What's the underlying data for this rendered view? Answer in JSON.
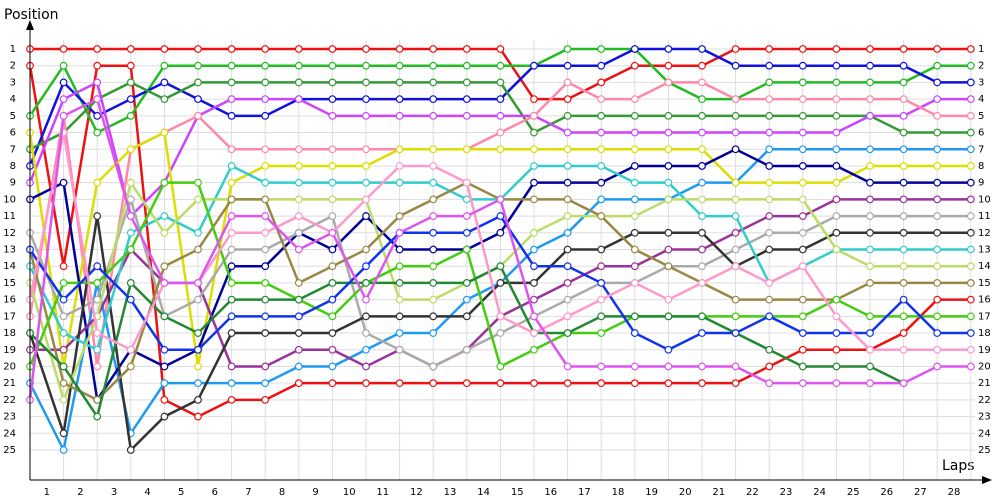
{
  "chart_data": {
    "type": "line",
    "y_label": "Position",
    "x_label": "Laps",
    "grid": true,
    "x": [
      0,
      1,
      2,
      3,
      4,
      5,
      6,
      7,
      8,
      9,
      10,
      11,
      12,
      13,
      14,
      15,
      16,
      17,
      18,
      19,
      20,
      21,
      22,
      23,
      24,
      25,
      26,
      27,
      28
    ],
    "xlim": [
      0,
      28
    ],
    "ylim": [
      25,
      1
    ],
    "xticks": [
      1,
      2,
      3,
      4,
      5,
      6,
      7,
      8,
      9,
      10,
      11,
      12,
      13,
      14,
      15,
      16,
      17,
      18,
      19,
      20,
      21,
      22,
      23,
      24,
      25,
      26,
      27,
      28
    ],
    "yticks": [
      1,
      2,
      3,
      4,
      5,
      6,
      7,
      8,
      9,
      10,
      11,
      12,
      13,
      14,
      15,
      16,
      17,
      18,
      19,
      20,
      21,
      22,
      23,
      24,
      25
    ],
    "series": [
      {
        "color": "#ee1111",
        "values": [
          1,
          1,
          1,
          1,
          1,
          1,
          1,
          1,
          1,
          1,
          1,
          1,
          1,
          1,
          1,
          4,
          4,
          3,
          2,
          2,
          2,
          1,
          1,
          1,
          1,
          1,
          1,
          1,
          1
        ]
      },
      {
        "color": "#ee1111",
        "values": [
          2,
          14,
          2,
          2,
          22,
          23,
          22,
          22,
          21,
          21,
          21,
          21,
          21,
          21,
          21,
          21,
          21,
          21,
          21,
          21,
          21,
          21,
          20,
          19,
          19,
          19,
          18,
          16,
          16
        ]
      },
      {
        "color": "#22bb22",
        "values": [
          5,
          2,
          6,
          5,
          2,
          2,
          2,
          2,
          2,
          2,
          2,
          2,
          2,
          2,
          2,
          2,
          1,
          1,
          1,
          3,
          4,
          4,
          3,
          3,
          3,
          3,
          3,
          2,
          2
        ]
      },
      {
        "color": "#1111dd",
        "values": [
          8,
          3,
          5,
          4,
          3,
          4,
          5,
          5,
          4,
          4,
          4,
          4,
          4,
          4,
          4,
          2,
          2,
          2,
          1,
          1,
          1,
          2,
          2,
          2,
          2,
          2,
          2,
          3,
          3
        ]
      },
      {
        "color": "#339933",
        "values": [
          7,
          6,
          4,
          3,
          4,
          3,
          3,
          3,
          3,
          3,
          3,
          3,
          3,
          3,
          3,
          6,
          5,
          5,
          5,
          5,
          5,
          5,
          5,
          5,
          5,
          5,
          6,
          6,
          6
        ]
      },
      {
        "color": "#cc44ff",
        "values": [
          9,
          4,
          3,
          11,
          9,
          5,
          4,
          4,
          4,
          5,
          5,
          5,
          5,
          5,
          5,
          5,
          6,
          6,
          6,
          6,
          6,
          6,
          6,
          6,
          6,
          5,
          5,
          4,
          4
        ]
      },
      {
        "color": "#ff88aa",
        "values": [
          17,
          5,
          20,
          7,
          6,
          5,
          7,
          7,
          7,
          7,
          7,
          7,
          7,
          7,
          6,
          5,
          3,
          4,
          4,
          3,
          3,
          4,
          4,
          4,
          4,
          4,
          4,
          5,
          5
        ]
      },
      {
        "color": "#1e9bf0",
        "values": [
          21,
          25,
          15,
          24,
          21,
          21,
          21,
          21,
          20,
          20,
          19,
          18,
          18,
          16,
          15,
          13,
          12,
          10,
          10,
          10,
          9,
          9,
          7,
          7,
          7,
          7,
          7,
          7,
          7
        ]
      },
      {
        "color": "#dddd00",
        "values": [
          6,
          20,
          9,
          7,
          6,
          20,
          9,
          8,
          8,
          8,
          8,
          7,
          7,
          7,
          7,
          7,
          7,
          7,
          7,
          7,
          7,
          9,
          9,
          9,
          9,
          8,
          8,
          8,
          8
        ]
      },
      {
        "color": "#000099",
        "values": [
          10,
          9,
          22,
          19,
          20,
          19,
          14,
          14,
          12,
          13,
          11,
          13,
          13,
          13,
          12,
          9,
          9,
          9,
          8,
          8,
          8,
          7,
          8,
          8,
          8,
          9,
          9,
          9,
          9
        ]
      },
      {
        "color": "#993399",
        "values": [
          19,
          19,
          17,
          13,
          15,
          15,
          20,
          20,
          19,
          19,
          20,
          19,
          20,
          19,
          17,
          16,
          15,
          14,
          14,
          13,
          13,
          12,
          11,
          11,
          10,
          10,
          10,
          10,
          10
        ]
      },
      {
        "color": "#aaaaaa",
        "values": [
          12,
          17,
          16,
          10,
          17,
          16,
          13,
          13,
          12,
          11,
          18,
          19,
          20,
          19,
          18,
          17,
          16,
          15,
          15,
          14,
          14,
          13,
          12,
          12,
          11,
          11,
          11,
          11,
          11
        ]
      },
      {
        "color": "#333333",
        "values": [
          18,
          24,
          11,
          25,
          23,
          22,
          18,
          18,
          18,
          18,
          17,
          17,
          17,
          17,
          15,
          15,
          13,
          13,
          12,
          12,
          12,
          14,
          13,
          13,
          12,
          12,
          12,
          12,
          12
        ]
      },
      {
        "color": "#33cccc",
        "values": [
          14,
          18,
          19,
          12,
          11,
          12,
          8,
          9,
          9,
          9,
          9,
          9,
          9,
          10,
          10,
          8,
          8,
          8,
          9,
          9,
          11,
          11,
          15,
          14,
          13,
          13,
          13,
          13,
          13
        ]
      },
      {
        "color": "#bbdd66",
        "values": [
          15,
          22,
          17,
          9,
          12,
          10,
          10,
          10,
          10,
          10,
          10,
          16,
          16,
          15,
          14,
          12,
          11,
          11,
          11,
          10,
          10,
          10,
          10,
          10,
          13,
          14,
          14,
          14,
          14
        ]
      },
      {
        "color": "#998844",
        "values": [
          13,
          21,
          22,
          20,
          14,
          13,
          10,
          10,
          15,
          14,
          13,
          11,
          10,
          9,
          10,
          10,
          10,
          11,
          13,
          14,
          15,
          16,
          16,
          16,
          16,
          15,
          15,
          15,
          15
        ]
      },
      {
        "color": "#44cc11",
        "values": [
          20,
          15,
          15,
          13,
          9,
          9,
          15,
          15,
          16,
          17,
          15,
          14,
          14,
          13,
          20,
          19,
          18,
          18,
          17,
          17,
          17,
          17,
          17,
          17,
          16,
          17,
          17,
          17,
          17
        ]
      },
      {
        "color": "#228833",
        "values": [
          18,
          20,
          23,
          15,
          17,
          18,
          16,
          16,
          16,
          15,
          15,
          15,
          15,
          15,
          14,
          18,
          18,
          17,
          17,
          17,
          17,
          18,
          19,
          20,
          20,
          20,
          21,
          null,
          null
        ]
      },
      {
        "color": "#1133ee",
        "values": [
          13,
          16,
          14,
          16,
          19,
          19,
          17,
          17,
          17,
          16,
          14,
          12,
          12,
          12,
          11,
          14,
          14,
          15,
          18,
          19,
          18,
          18,
          17,
          18,
          18,
          18,
          16,
          18,
          18
        ]
      },
      {
        "color": "#ff99cc",
        "values": [
          16,
          6,
          18,
          19,
          15,
          15,
          12,
          12,
          11,
          12,
          10,
          8,
          8,
          9,
          17,
          18,
          17,
          16,
          15,
          16,
          15,
          14,
          15,
          14,
          17,
          19,
          19,
          19,
          19
        ]
      },
      {
        "color": "#dd55ee",
        "values": [
          22,
          5,
          4,
          11,
          15,
          15,
          11,
          11,
          13,
          12,
          16,
          12,
          11,
          11,
          10,
          17,
          20,
          20,
          20,
          20,
          20,
          20,
          21,
          21,
          21,
          21,
          21,
          20,
          20
        ]
      }
    ]
  }
}
